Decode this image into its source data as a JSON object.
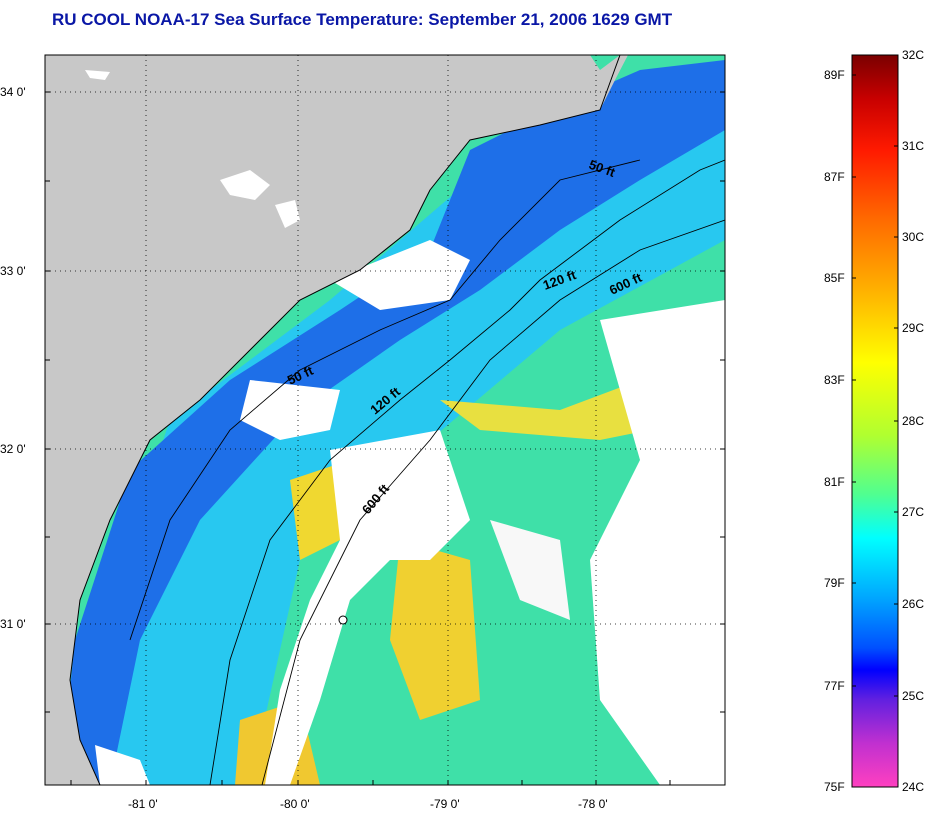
{
  "title": "RU COOL  NOAA-17  Sea Surface Temperature:  September 21, 2006 1629 GMT",
  "map": {
    "latitude_labels": [
      "34 0'",
      "33 0'",
      "32 0'",
      "31 0'"
    ],
    "longitude_labels": [
      "-81 0'",
      "-80 0'",
      "-79 0'",
      "-78 0'"
    ],
    "contours": [
      {
        "label": "50 ft",
        "id": "50ft-north"
      },
      {
        "label": "120 ft",
        "id": "120ft-north"
      },
      {
        "label": "600 ft",
        "id": "600ft-north"
      },
      {
        "label": "50 ft",
        "id": "50ft-south"
      },
      {
        "label": "120 ft",
        "id": "120ft-south"
      },
      {
        "label": "600 ft",
        "id": "600ft-south"
      }
    ],
    "colors": {
      "land": "#c8c8c8",
      "cloud": "#ffffff",
      "nearshore": "#1e6fe8",
      "shelf": "#24c0f0",
      "offshore": "#3fe0a8",
      "gulfstream": "#f0e028",
      "warm": "#f0b828"
    }
  },
  "colorbar": {
    "fahrenheit_labels": [
      "89F",
      "87F",
      "85F",
      "83F",
      "81F",
      "79F",
      "77F",
      "75F"
    ],
    "celsius_labels": [
      "32C",
      "31C",
      "30C",
      "29C",
      "28C",
      "27C",
      "26C",
      "25C",
      "24C"
    ]
  }
}
